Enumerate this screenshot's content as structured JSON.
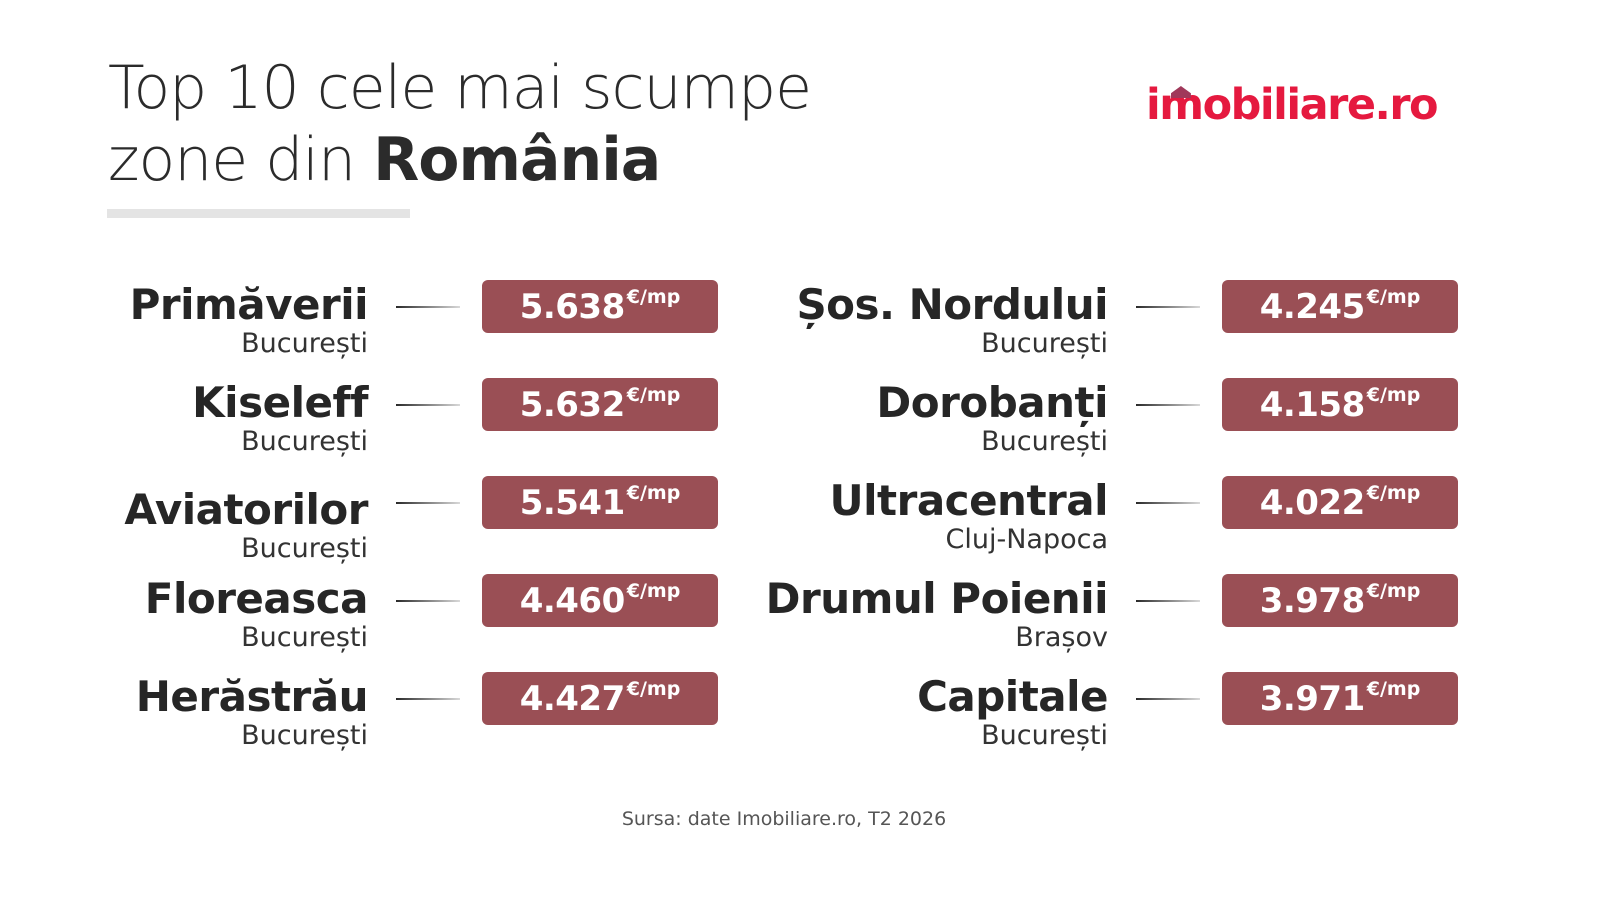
{
  "title": {
    "line1": "Top 10 cele mai scumpe",
    "line2_regular": "zone din ",
    "line2_bold": "România"
  },
  "logo": {
    "part1": "i",
    "part2": "m",
    "part3": "obiliare.ro",
    "color": "#e5193f"
  },
  "unit": "€/mp",
  "badge_color": "#9a4f55",
  "left_column": [
    {
      "name": "Primăverii",
      "city": "București",
      "price": "5.638"
    },
    {
      "name": "Kiseleff",
      "city": "București",
      "price": "5.632"
    },
    {
      "name": "Aviatorilor",
      "city": "București",
      "price": "5.541"
    },
    {
      "name": "Floreasca",
      "city": "București",
      "price": "4.460"
    },
    {
      "name": "Herăstrău",
      "city": "București",
      "price": "4.427"
    }
  ],
  "right_column": [
    {
      "name": "Șos. Nordului",
      "city": "București",
      "price": "4.245"
    },
    {
      "name": "Dorobanți",
      "city": "București",
      "price": "4.158"
    },
    {
      "name": "Ultracentral",
      "city": "Cluj-Napoca",
      "price": "4.022"
    },
    {
      "name": "Drumul Poienii",
      "city": "Brașov",
      "price": "3.978"
    },
    {
      "name": "Capitale",
      "city": "București",
      "price": "3.971"
    }
  ],
  "source": "Sursa: date Imobiliare.ro, T2 2026"
}
